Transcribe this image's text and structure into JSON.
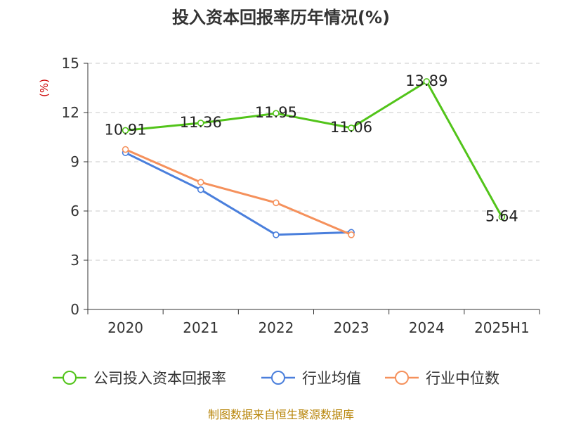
{
  "chart_data": {
    "type": "line",
    "title": "投入资本回报率历年情况(%)",
    "ylabel": "(%)",
    "xlabel": "",
    "categories": [
      "2020",
      "2021",
      "2022",
      "2023",
      "2024",
      "2025H1"
    ],
    "ylim": [
      0,
      15
    ],
    "yticks": [
      "0",
      "3",
      "6",
      "9",
      "12",
      "15"
    ],
    "grid": true,
    "legend_position": "bottom",
    "series": [
      {
        "name": "公司投入资本回报率",
        "color": "#52c41a",
        "values": [
          10.91,
          11.36,
          11.95,
          11.06,
          13.89,
          5.64
        ],
        "labels": [
          "10.91",
          "11.36",
          "11.95",
          "11.06",
          "13.89",
          "5.64"
        ]
      },
      {
        "name": "行业均值",
        "color": "#4a7fdc",
        "values": [
          9.55,
          7.3,
          4.55,
          4.7,
          null,
          null
        ]
      },
      {
        "name": "行业中位数",
        "color": "#f5915c",
        "values": [
          9.75,
          7.75,
          6.5,
          4.55,
          null,
          null
        ]
      }
    ],
    "source": "制图数据来自恒生聚源数据库"
  }
}
